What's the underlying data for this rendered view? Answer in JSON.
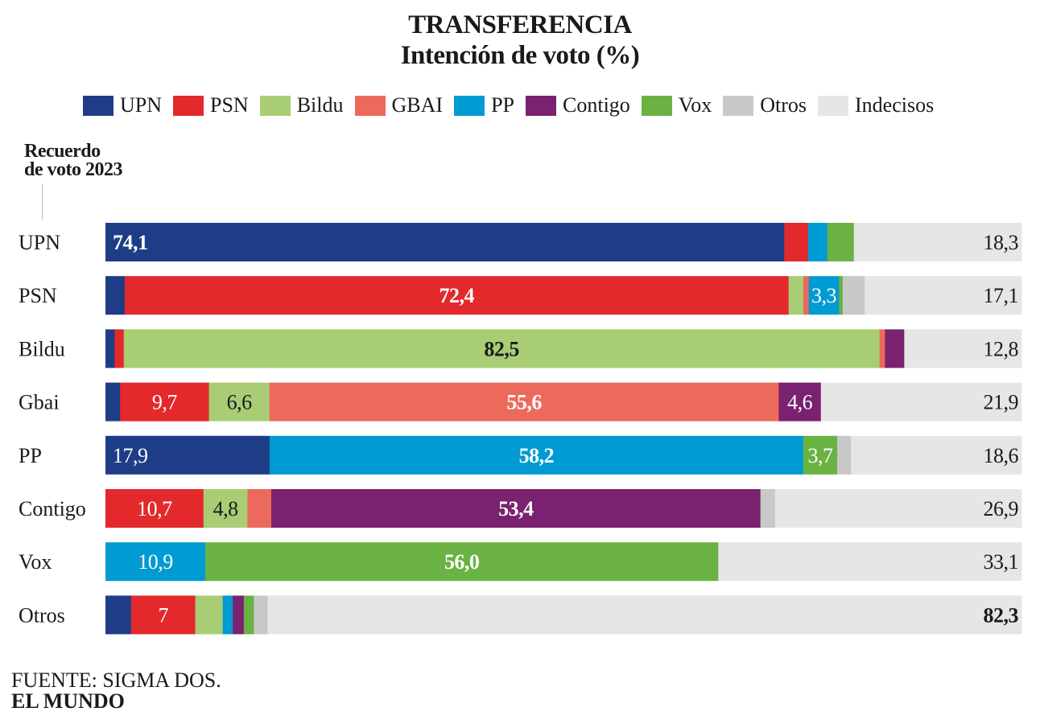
{
  "title_line1": "TRANSFERENCIA",
  "title_line2": "Intención  de voto (%)",
  "axis_title_line1": "Recuerdo",
  "axis_title_line2": "de voto 2023",
  "source": "FUENTE: SIGMA DOS.",
  "brand": "EL MUNDO",
  "colors": {
    "UPN": "#1f3d87",
    "PSN": "#e3292b",
    "Bildu": "#a9cd74",
    "GBAI": "#ec6a5b",
    "PP": "#009bd2",
    "Contigo": "#7a2170",
    "Vox": "#6ab243",
    "Otros": "#c8c8c8",
    "Indecisos": "#e6e6e6"
  },
  "chart_data": {
    "type": "bar",
    "orientation": "horizontal",
    "stacked": true,
    "title": "TRANSFERENCIA",
    "subtitle": "Intención  de voto (%)",
    "ylabel": "Recuerdo de voto 2023",
    "xlim": [
      0,
      100
    ],
    "legend_position": "top",
    "series_names": [
      "UPN",
      "PSN",
      "Bildu",
      "GBAI",
      "PP",
      "Contigo",
      "Vox",
      "Otros",
      "Indecisos"
    ],
    "legend_labels": [
      "UPN",
      "PSN",
      "Bildu",
      "GBAI",
      "PP",
      "Contigo",
      "Vox",
      "Otros",
      "Indecisos"
    ],
    "categories": [
      "UPN",
      "PSN",
      "Bildu",
      "Gbai",
      "PP",
      "Contigo",
      "Vox",
      "Otros"
    ],
    "rows": [
      {
        "label": "UPN",
        "values": [
          74.1,
          2.6,
          0,
          0,
          2.1,
          0,
          2.9,
          0,
          18.3
        ],
        "labels": [
          "74,1",
          "",
          "",
          "",
          "",
          "",
          "",
          "",
          "18,3"
        ]
      },
      {
        "label": "PSN",
        "values": [
          2.1,
          72.4,
          1.6,
          0.6,
          3.3,
          0,
          0.4,
          2.4,
          17.1
        ],
        "labels": [
          "",
          "72,4",
          "",
          "",
          "3,3",
          "",
          "",
          "",
          "17,1"
        ]
      },
      {
        "label": "Bildu",
        "values": [
          1.0,
          1.0,
          82.5,
          0.6,
          0,
          2.1,
          0,
          0,
          12.8
        ],
        "labels": [
          "",
          "",
          "82,5",
          "",
          "",
          "",
          "",
          "",
          "12,8"
        ]
      },
      {
        "label": "Gbai",
        "values": [
          1.6,
          9.7,
          6.6,
          55.6,
          0,
          4.6,
          0,
          0,
          21.9
        ],
        "labels": [
          "",
          "9,7",
          "6,6",
          "55,6",
          "",
          "4,6",
          "",
          "",
          "21,9"
        ]
      },
      {
        "label": "PP",
        "values": [
          17.9,
          0,
          0,
          0,
          58.2,
          0,
          3.7,
          1.5,
          18.6
        ],
        "labels": [
          "17,9",
          "",
          "",
          "",
          "58,2",
          "",
          "3,7",
          "",
          "18,6"
        ]
      },
      {
        "label": "Contigo",
        "values": [
          0,
          10.7,
          4.8,
          2.6,
          0,
          53.4,
          0,
          1.6,
          26.9
        ],
        "labels": [
          "",
          "10,7",
          "4,8",
          "",
          "",
          "53,4",
          "",
          "",
          "26,9"
        ]
      },
      {
        "label": "Vox",
        "values": [
          0,
          0,
          0,
          0,
          10.9,
          0,
          56.0,
          0,
          33.1
        ],
        "labels": [
          "",
          "",
          "",
          "",
          "10,9",
          "",
          "56,0",
          "",
          "33,1"
        ]
      },
      {
        "label": "Otros",
        "values": [
          2.8,
          7.0,
          3.0,
          0,
          1.1,
          1.2,
          1.1,
          1.5,
          82.3
        ],
        "labels": [
          "",
          "7",
          "",
          "",
          "",
          "",
          "",
          "",
          "82,3"
        ]
      }
    ],
    "bold_labels": [
      [
        0,
        0
      ],
      [
        1,
        1
      ],
      [
        2,
        2
      ],
      [
        3,
        3
      ],
      [
        4,
        4
      ],
      [
        5,
        5
      ],
      [
        6,
        6
      ],
      [
        7,
        8
      ]
    ]
  }
}
